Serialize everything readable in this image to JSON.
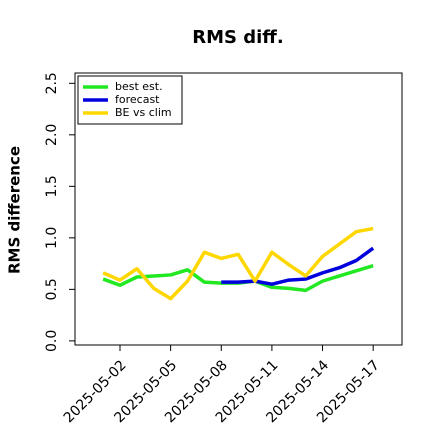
{
  "chart_data": {
    "type": "line",
    "title": "RMS diff.",
    "y_label": "RMS difference",
    "x": [
      "2025-05-01",
      "2025-05-02",
      "2025-05-03",
      "2025-05-04",
      "2025-05-05",
      "2025-05-06",
      "2025-05-07",
      "2025-05-08",
      "2025-05-09",
      "2025-05-10",
      "2025-05-11",
      "2025-05-12",
      "2025-05-13",
      "2025-05-14",
      "2025-05-15",
      "2025-05-16",
      "2025-05-17"
    ],
    "series": [
      {
        "name": "best est.",
        "color": "#22e822",
        "values": [
          0.6,
          0.54,
          0.62,
          0.63,
          0.64,
          0.69,
          0.57,
          0.56,
          0.56,
          0.58,
          0.52,
          0.51,
          0.49,
          0.58,
          0.63,
          0.68,
          0.73
        ]
      },
      {
        "name": "forecast",
        "color": "#0000dd",
        "values": [
          null,
          null,
          null,
          null,
          null,
          null,
          null,
          0.57,
          0.57,
          0.58,
          0.55,
          0.59,
          0.6,
          0.66,
          0.71,
          0.78,
          0.9
        ]
      },
      {
        "name": "BE vs clim",
        "color": "#ffd700",
        "values": [
          0.66,
          0.59,
          0.7,
          0.51,
          0.41,
          0.58,
          0.86,
          0.8,
          0.84,
          0.58,
          0.86,
          0.74,
          0.63,
          0.82,
          0.94,
          1.06,
          1.09
        ]
      }
    ],
    "xlim": [
      "2025-04-29T08:00:00Z",
      "2025-05-18T17:00:00Z"
    ],
    "xticks": [
      "2025-05-02",
      "2025-05-05",
      "2025-05-08",
      "2025-05-11",
      "2025-05-14",
      "2025-05-17"
    ],
    "highlight_xtick": "2025-05-08",
    "highlight_color": "#228b22",
    "ylim": [
      -0.04,
      2.6
    ],
    "yticks": [
      {
        "value": 0,
        "label": "0.0"
      },
      0.5,
      {
        "value": 1,
        "label": "1.0"
      },
      1.5,
      {
        "value": 2,
        "label": "2.0"
      },
      2.5
    ],
    "legend": "upper-left"
  }
}
